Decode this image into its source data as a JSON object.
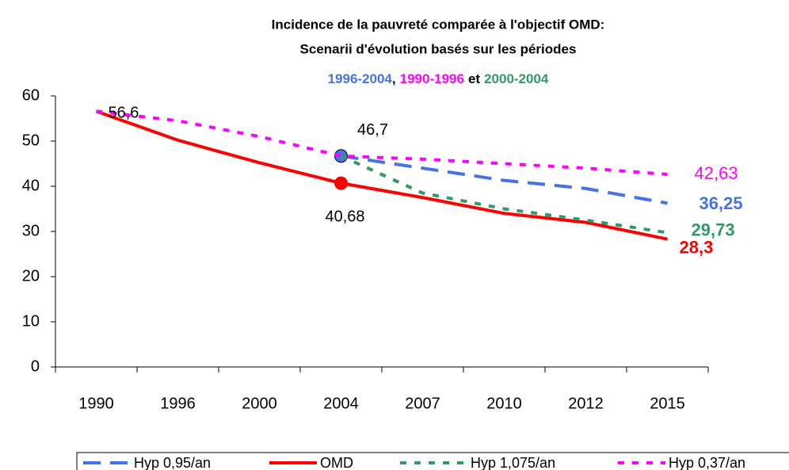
{
  "chart_data": {
    "type": "line",
    "title": [
      "Incidence de la pauvreté comparée à l'objectif OMD:",
      "Scenarii d'évolution basés sur les périodes"
    ],
    "subtitle_parts": [
      {
        "text": "1996-2004",
        "color": "#4472e8"
      },
      {
        "text": ",",
        "color": "#000000"
      },
      {
        "text": "1990-1996",
        "color": "#ff00ff"
      },
      {
        "text": "et",
        "color": "#000000"
      },
      {
        "text": "2000-2004",
        "color": "#339966"
      }
    ],
    "categories": [
      "1990",
      "1996",
      "2000",
      "2004",
      "2007",
      "2010",
      "2012",
      "2015"
    ],
    "ylim": [
      0,
      60
    ],
    "yticks": [
      0,
      10,
      20,
      30,
      40,
      50,
      60
    ],
    "series": [
      {
        "name": "Hyp 0,95/an",
        "color": "#4472e8",
        "dash": "dash",
        "marker_index": 3,
        "values": [
          null,
          null,
          null,
          46.7,
          44,
          41.3,
          39.5,
          36.25
        ],
        "value_labels": [
          null,
          null,
          null,
          "46,7",
          null,
          null,
          null,
          "36,25"
        ]
      },
      {
        "name": "OMD",
        "color": "#ff0000",
        "dash": "solid",
        "marker_index": 3,
        "values": [
          56.6,
          50.2,
          45.2,
          40.68,
          37.5,
          34,
          32,
          28.3
        ],
        "value_labels": [
          null,
          null,
          null,
          "40,68",
          null,
          null,
          null,
          "28,3"
        ]
      },
      {
        "name": "Hyp 1,075/an",
        "color": "#339966",
        "dash": "dot",
        "values": [
          null,
          null,
          null,
          46.7,
          38.5,
          35,
          32.5,
          29.73
        ],
        "value_labels": [
          null,
          null,
          null,
          null,
          null,
          null,
          null,
          "29,73"
        ]
      },
      {
        "name": "Hyp 0,37/an",
        "color": "#ff00ff",
        "dash": "dot",
        "values": [
          56.6,
          54.5,
          51,
          46.7,
          46,
          45,
          44,
          42.63
        ],
        "value_labels": [
          "56,6",
          null,
          null,
          null,
          null,
          null,
          null,
          "42,63"
        ]
      }
    ]
  }
}
